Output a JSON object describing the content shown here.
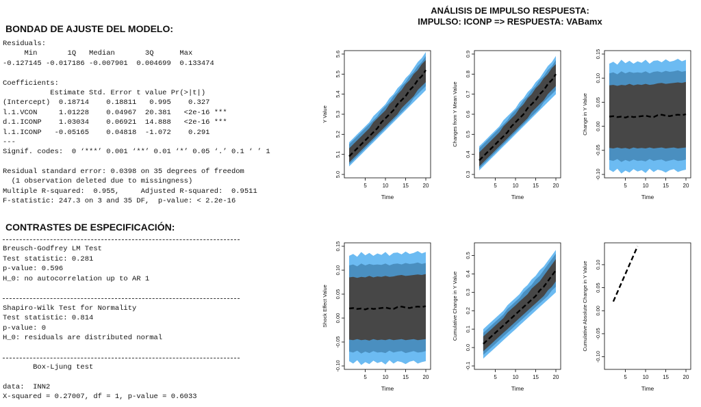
{
  "left": {
    "fit_heading": "BONDAD DE AJUSTE DEL MODELO:",
    "fit_lines": [
      "Residuals:",
      "     Min       1Q   Median       3Q      Max",
      "-0.127145 -0.017186 -0.007901  0.004699  0.133474",
      "",
      "Coefficients:",
      "           Estimate Std. Error t value Pr(>|t|)",
      "(Intercept)  0.18714    0.18811   0.995    0.327",
      "l.1.VCON     1.01228    0.04967  20.381   <2e-16 ***",
      "d.1.ICONP    1.03034    0.06921  14.888   <2e-16 ***",
      "l.1.ICONP   -0.05165    0.04818  -1.072    0.291",
      "---",
      "Signif. codes:  0 ‘***’ 0.001 ‘**’ 0.01 ‘*’ 0.05 ‘.’ 0.1 ‘ ’ 1",
      "",
      "Residual standard error: 0.0398 on 35 degrees of freedom",
      "  (1 observation deleted due to missingness)",
      "Multiple R-squared:  0.955,     Adjusted R-squared:  0.9511",
      "F-statistic: 247.3 on 3 and 35 DF,  p-value: < 2.2e-16"
    ],
    "spec_heading": "CONTRASTES DE ESPECIFICACIÓN:",
    "spec_lines": [
      "---",
      "Breusch-Godfrey LM Test",
      "Test statistic: 0.281",
      "p-value: 0.596",
      "H_0: no autocorrelation up to AR 1",
      "",
      "---",
      "Shapiro-Wilk Test for Normality",
      "Test statistic: 0.814",
      "p-value: 0",
      "H_0: residuals are distributed normal",
      "",
      "---",
      "       Box-Ljung test",
      "",
      "data:  INN2",
      "X-squared = 0.27007, df = 1, p-value = 0.6033"
    ]
  },
  "charts_title": [
    "ANÁLISIS DE IMPULSO RESPUESTA:",
    "IMPULSO: ICONP => RESPUESTA: VABamx"
  ],
  "colors": {
    "outer_band": "#6cbbf2",
    "middle_band": "#4a8fc0",
    "inner_band": "#474747",
    "line": "#000000"
  },
  "chart_data": [
    {
      "type": "area",
      "xlabel": "Time",
      "ylabel": "Y Value",
      "xlim": [
        1,
        20
      ],
      "ylim": [
        5.0,
        5.6
      ],
      "xticks": [
        5,
        10,
        15,
        20
      ],
      "yticks": [
        5.0,
        5.1,
        5.2,
        5.3,
        5.4,
        5.5,
        5.6
      ],
      "x": [
        1,
        2,
        3,
        4,
        5,
        6,
        7,
        8,
        9,
        10,
        11,
        12,
        13,
        14,
        15,
        16,
        17,
        18,
        19,
        20
      ],
      "line": [
        5.09,
        5.11,
        5.13,
        5.15,
        5.17,
        5.19,
        5.21,
        5.23,
        5.26,
        5.28,
        5.3,
        5.32,
        5.35,
        5.37,
        5.39,
        5.42,
        5.44,
        5.47,
        5.49,
        5.52
      ],
      "inner": [
        [
          5.06,
          5.08,
          5.1,
          5.12,
          5.14,
          5.16,
          5.18,
          5.2,
          5.22,
          5.24,
          5.26,
          5.28,
          5.3,
          5.33,
          5.35,
          5.37,
          5.39,
          5.42,
          5.44,
          5.46
        ],
        [
          5.13,
          5.15,
          5.17,
          5.19,
          5.21,
          5.23,
          5.26,
          5.28,
          5.3,
          5.32,
          5.35,
          5.37,
          5.4,
          5.42,
          5.45,
          5.47,
          5.5,
          5.52,
          5.55,
          5.57
        ]
      ],
      "middle": [
        [
          5.05,
          5.07,
          5.09,
          5.11,
          5.13,
          5.15,
          5.17,
          5.19,
          5.21,
          5.23,
          5.25,
          5.27,
          5.29,
          5.31,
          5.33,
          5.35,
          5.38,
          5.4,
          5.42,
          5.44
        ],
        [
          5.15,
          5.17,
          5.19,
          5.21,
          5.23,
          5.25,
          5.27,
          5.29,
          5.32,
          5.34,
          5.36,
          5.39,
          5.41,
          5.44,
          5.46,
          5.49,
          5.51,
          5.54,
          5.56,
          5.59
        ]
      ],
      "outer": [
        [
          5.04,
          5.06,
          5.08,
          5.1,
          5.12,
          5.14,
          5.16,
          5.18,
          5.2,
          5.22,
          5.24,
          5.26,
          5.28,
          5.3,
          5.32,
          5.34,
          5.36,
          5.38,
          5.4,
          5.42
        ],
        [
          5.16,
          5.18,
          5.2,
          5.22,
          5.24,
          5.26,
          5.29,
          5.31,
          5.33,
          5.35,
          5.38,
          5.4,
          5.43,
          5.45,
          5.48,
          5.5,
          5.53,
          5.56,
          5.58,
          5.61
        ]
      ]
    },
    {
      "type": "area",
      "xlabel": "Time",
      "ylabel": "Changes from Y Mean Value",
      "xlim": [
        1,
        20
      ],
      "ylim": [
        0.3,
        0.9
      ],
      "xticks": [
        5,
        10,
        15,
        20
      ],
      "yticks": [
        0.3,
        0.4,
        0.5,
        0.6,
        0.7,
        0.8,
        0.9
      ],
      "x": [
        1,
        2,
        3,
        4,
        5,
        6,
        7,
        8,
        9,
        10,
        11,
        12,
        13,
        14,
        15,
        16,
        17,
        18,
        19,
        20
      ],
      "line": [
        0.37,
        0.39,
        0.41,
        0.43,
        0.45,
        0.47,
        0.49,
        0.51,
        0.54,
        0.56,
        0.58,
        0.6,
        0.63,
        0.65,
        0.67,
        0.7,
        0.72,
        0.75,
        0.77,
        0.8
      ],
      "inner": [
        [
          0.34,
          0.36,
          0.38,
          0.4,
          0.42,
          0.44,
          0.46,
          0.48,
          0.5,
          0.52,
          0.54,
          0.56,
          0.58,
          0.61,
          0.63,
          0.65,
          0.67,
          0.7,
          0.72,
          0.74
        ],
        [
          0.41,
          0.43,
          0.45,
          0.47,
          0.49,
          0.51,
          0.54,
          0.56,
          0.58,
          0.6,
          0.63,
          0.65,
          0.68,
          0.7,
          0.73,
          0.75,
          0.78,
          0.8,
          0.83,
          0.85
        ]
      ],
      "middle": [
        [
          0.33,
          0.35,
          0.37,
          0.39,
          0.41,
          0.43,
          0.45,
          0.47,
          0.49,
          0.51,
          0.53,
          0.55,
          0.57,
          0.59,
          0.61,
          0.63,
          0.66,
          0.68,
          0.7,
          0.72
        ],
        [
          0.43,
          0.45,
          0.47,
          0.49,
          0.51,
          0.53,
          0.55,
          0.57,
          0.6,
          0.62,
          0.64,
          0.67,
          0.69,
          0.72,
          0.74,
          0.77,
          0.79,
          0.82,
          0.84,
          0.87
        ]
      ],
      "outer": [
        [
          0.32,
          0.34,
          0.36,
          0.38,
          0.4,
          0.42,
          0.44,
          0.46,
          0.48,
          0.5,
          0.52,
          0.54,
          0.56,
          0.58,
          0.6,
          0.62,
          0.64,
          0.66,
          0.68,
          0.7
        ],
        [
          0.44,
          0.46,
          0.48,
          0.5,
          0.52,
          0.54,
          0.57,
          0.59,
          0.61,
          0.63,
          0.66,
          0.68,
          0.71,
          0.73,
          0.76,
          0.78,
          0.81,
          0.84,
          0.86,
          0.89
        ]
      ]
    },
    {
      "type": "area",
      "xlabel": "Time",
      "ylabel": "Change in Y Value",
      "xlim": [
        1,
        20
      ],
      "ylim": [
        -0.1,
        0.15
      ],
      "xticks": [
        5,
        10,
        15,
        20
      ],
      "yticks": [
        -0.1,
        -0.05,
        0.0,
        0.05,
        0.1,
        0.15
      ],
      "x": [
        1,
        2,
        3,
        4,
        5,
        6,
        7,
        8,
        9,
        10,
        11,
        12,
        13,
        14,
        15,
        16,
        17,
        18,
        19,
        20
      ],
      "line": [
        0.02,
        0.021,
        0.019,
        0.02,
        0.018,
        0.021,
        0.019,
        0.02,
        0.021,
        0.022,
        0.02,
        0.019,
        0.023,
        0.024,
        0.022,
        0.021,
        0.023,
        0.024,
        0.023,
        0.025
      ],
      "inner": [
        [
          -0.045,
          -0.046,
          -0.044,
          -0.046,
          -0.045,
          -0.047,
          -0.044,
          -0.046,
          -0.045,
          -0.046,
          -0.044,
          -0.046,
          -0.045,
          -0.044,
          -0.046,
          -0.045,
          -0.044,
          -0.046,
          -0.045,
          -0.044
        ],
        [
          0.085,
          0.086,
          0.084,
          0.086,
          0.085,
          0.088,
          0.085,
          0.087,
          0.086,
          0.088,
          0.086,
          0.087,
          0.089,
          0.09,
          0.088,
          0.089,
          0.09,
          0.091,
          0.09,
          0.092
        ]
      ],
      "middle": [
        [
          -0.07,
          -0.072,
          -0.068,
          -0.074,
          -0.07,
          -0.073,
          -0.069,
          -0.072,
          -0.071,
          -0.073,
          -0.068,
          -0.072,
          -0.07,
          -0.069,
          -0.073,
          -0.071,
          -0.069,
          -0.072,
          -0.071,
          -0.069
        ],
        [
          0.11,
          0.112,
          0.108,
          0.114,
          0.11,
          0.113,
          0.111,
          0.112,
          0.111,
          0.114,
          0.11,
          0.113,
          0.114,
          0.112,
          0.115,
          0.113,
          0.114,
          0.116,
          0.113,
          0.115
        ]
      ],
      "outer": [
        [
          -0.09,
          -0.095,
          -0.088,
          -0.098,
          -0.092,
          -0.096,
          -0.089,
          -0.094,
          -0.091,
          -0.097,
          -0.088,
          -0.095,
          -0.09,
          -0.092,
          -0.096,
          -0.091,
          -0.089,
          -0.095,
          -0.092,
          -0.09
        ],
        [
          0.13,
          0.134,
          0.128,
          0.138,
          0.131,
          0.136,
          0.13,
          0.135,
          0.132,
          0.138,
          0.13,
          0.136,
          0.137,
          0.133,
          0.139,
          0.134,
          0.136,
          0.14,
          0.135,
          0.138
        ]
      ]
    },
    {
      "type": "area",
      "xlabel": "Time",
      "ylabel": "Shock Effect Value",
      "xlim": [
        1,
        20
      ],
      "ylim": [
        -0.1,
        0.15
      ],
      "xticks": [
        5,
        10,
        15,
        20
      ],
      "yticks": [
        -0.1,
        -0.05,
        0.0,
        0.05,
        0.1,
        0.15
      ],
      "x": [
        1,
        2,
        3,
        4,
        5,
        6,
        7,
        8,
        9,
        10,
        11,
        12,
        13,
        14,
        15,
        16,
        17,
        18,
        19,
        20
      ],
      "line": [
        0.02,
        0.021,
        0.019,
        0.02,
        0.018,
        0.021,
        0.019,
        0.02,
        0.021,
        0.022,
        0.02,
        0.019,
        0.023,
        0.024,
        0.022,
        0.021,
        0.023,
        0.024,
        0.023,
        0.025
      ],
      "inner": [
        [
          -0.045,
          -0.046,
          -0.044,
          -0.046,
          -0.045,
          -0.047,
          -0.044,
          -0.046,
          -0.045,
          -0.046,
          -0.044,
          -0.046,
          -0.045,
          -0.044,
          -0.046,
          -0.045,
          -0.044,
          -0.046,
          -0.045,
          -0.044
        ],
        [
          0.085,
          0.086,
          0.084,
          0.086,
          0.085,
          0.088,
          0.085,
          0.087,
          0.086,
          0.088,
          0.086,
          0.087,
          0.089,
          0.09,
          0.088,
          0.089,
          0.09,
          0.091,
          0.09,
          0.092
        ]
      ],
      "middle": [
        [
          -0.07,
          -0.072,
          -0.068,
          -0.074,
          -0.07,
          -0.073,
          -0.069,
          -0.072,
          -0.071,
          -0.073,
          -0.068,
          -0.072,
          -0.07,
          -0.069,
          -0.073,
          -0.071,
          -0.069,
          -0.072,
          -0.071,
          -0.069
        ],
        [
          0.11,
          0.112,
          0.108,
          0.114,
          0.11,
          0.113,
          0.111,
          0.112,
          0.111,
          0.114,
          0.11,
          0.113,
          0.114,
          0.112,
          0.115,
          0.113,
          0.114,
          0.116,
          0.113,
          0.115
        ]
      ],
      "outer": [
        [
          -0.09,
          -0.095,
          -0.088,
          -0.098,
          -0.092,
          -0.096,
          -0.089,
          -0.094,
          -0.091,
          -0.097,
          -0.088,
          -0.095,
          -0.09,
          -0.092,
          -0.096,
          -0.091,
          -0.089,
          -0.095,
          -0.092,
          -0.09
        ],
        [
          0.13,
          0.134,
          0.128,
          0.138,
          0.131,
          0.136,
          0.13,
          0.135,
          0.132,
          0.138,
          0.13,
          0.136,
          0.137,
          0.133,
          0.139,
          0.134,
          0.136,
          0.14,
          0.135,
          0.138
        ]
      ]
    },
    {
      "type": "area",
      "xlabel": "Time",
      "ylabel": "Cumulative Change in Y Value",
      "xlim": [
        1,
        20
      ],
      "ylim": [
        -0.1,
        0.55
      ],
      "xticks": [
        5,
        10,
        15,
        20
      ],
      "yticks": [
        -0.1,
        0.0,
        0.1,
        0.2,
        0.3,
        0.4,
        0.5
      ],
      "x": [
        2,
        3,
        4,
        5,
        6,
        7,
        8,
        9,
        10,
        11,
        12,
        13,
        14,
        15,
        16,
        17,
        18,
        19,
        20
      ],
      "line": [
        0.02,
        0.04,
        0.06,
        0.08,
        0.1,
        0.12,
        0.14,
        0.16,
        0.18,
        0.2,
        0.22,
        0.24,
        0.26,
        0.28,
        0.31,
        0.33,
        0.36,
        0.39,
        0.42
      ],
      "inner": [
        [
          -0.02,
          0.0,
          0.02,
          0.04,
          0.06,
          0.08,
          0.1,
          0.12,
          0.14,
          0.16,
          0.18,
          0.2,
          0.22,
          0.24,
          0.26,
          0.28,
          0.31,
          0.33,
          0.36
        ],
        [
          0.06,
          0.08,
          0.1,
          0.12,
          0.14,
          0.16,
          0.19,
          0.21,
          0.23,
          0.25,
          0.27,
          0.29,
          0.32,
          0.34,
          0.36,
          0.39,
          0.42,
          0.45,
          0.48
        ]
      ],
      "middle": [
        [
          -0.04,
          -0.02,
          0.0,
          0.02,
          0.04,
          0.06,
          0.08,
          0.1,
          0.12,
          0.14,
          0.16,
          0.18,
          0.2,
          0.22,
          0.24,
          0.26,
          0.28,
          0.31,
          0.33
        ],
        [
          0.08,
          0.1,
          0.12,
          0.14,
          0.16,
          0.18,
          0.21,
          0.23,
          0.25,
          0.27,
          0.3,
          0.32,
          0.34,
          0.37,
          0.39,
          0.42,
          0.45,
          0.48,
          0.51
        ]
      ],
      "outer": [
        [
          -0.06,
          -0.04,
          -0.02,
          0.0,
          0.02,
          0.04,
          0.06,
          0.08,
          0.1,
          0.12,
          0.14,
          0.16,
          0.18,
          0.2,
          0.22,
          0.24,
          0.26,
          0.28,
          0.3
        ],
        [
          0.1,
          0.12,
          0.14,
          0.16,
          0.18,
          0.2,
          0.23,
          0.25,
          0.27,
          0.29,
          0.32,
          0.34,
          0.37,
          0.39,
          0.42,
          0.44,
          0.47,
          0.5,
          0.53
        ]
      ]
    },
    {
      "type": "line",
      "xlabel": "Time",
      "ylabel": "Cumulative Absolute Change in Y Value",
      "xlim": [
        1,
        20
      ],
      "ylim": [
        -0.12,
        0.14
      ],
      "xticks": [
        5,
        10,
        15,
        20
      ],
      "yticks": [
        -0.1,
        -0.05,
        0.0,
        0.05,
        0.1
      ],
      "x": [
        2,
        3,
        4,
        5,
        6,
        7,
        8
      ],
      "line": [
        0.02,
        0.04,
        0.06,
        0.08,
        0.1,
        0.12,
        0.14
      ]
    }
  ]
}
